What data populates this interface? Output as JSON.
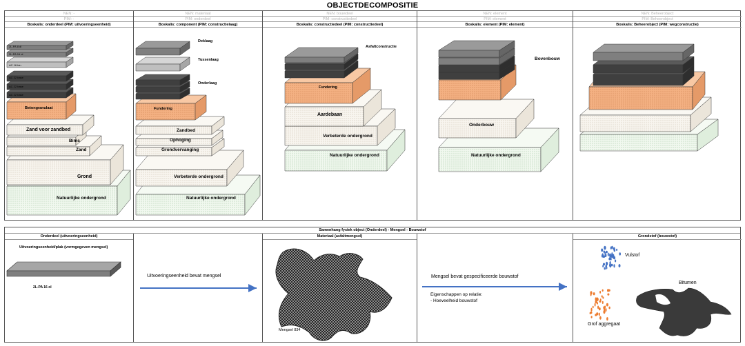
{
  "title": "OBJECTDECOMPOSITIE",
  "top": {
    "columns": [
      {
        "nen": "NEN: -",
        "pim_gray": "PIM: -",
        "boskalis": "Boskalis: onderdeel (PIM: uitvoeringseenheid)"
      },
      {
        "nen": "NEN: materiaal",
        "pim_gray": "PIM: onderdeel",
        "boskalis": "Boskalis: component (PIM: constructielaag)"
      },
      {
        "nen": "NEN: bouwdeel",
        "pim_gray": "PIM: constructiedeel",
        "boskalis": "Boskalis: constructiedeel (PIM: constructiedeel)"
      },
      {
        "nen": "NEN: element",
        "pim_gray": "PIM: element",
        "boskalis": "Boskalis: element (PIM: element)"
      },
      {
        "nen": "NEN: Beheerobject",
        "pim_gray": "PIM: Beheerobject",
        "boskalis": "Boskalis: Beheerobject (PIM: wegconstructie)"
      }
    ],
    "col1": {
      "asphalt_labels": [
        "2L-PA 8 dl",
        "2L-PA 16 ol",
        "AC 16 bin",
        "AC 22 base",
        "AC 22 base",
        "AC 22 base"
      ],
      "betongranulaat": "Betongranulaat",
      "zand_voor_zandbed": "Zand voor zandbed",
      "bims": "Bims",
      "zand": "Zand",
      "grond": "Grond",
      "natuurlijke_ondergrond": "Natuurlijke ondergrond"
    },
    "col2": {
      "deklaag": "Deklaag",
      "tussenlaag": "Tussenlaag",
      "onderlaag": "Onderlaag",
      "fundering": "Fundering",
      "zandbed": "Zandbed",
      "ophoging": "Ophoging",
      "grondverbetering": "Grondvervanging",
      "verbeterde_ondergrond": "Verbeterde ondergrond",
      "natuurlijke_ondergrond": "Natuurlijke ondergrond"
    },
    "col3": {
      "asfaltconstructie": "Asfaltconstructie",
      "fundering": "Fundering",
      "aardebaan": "Aardebaan",
      "verbeterde_ondergrond": "Verbeterde ondergrond",
      "natuurlijke_ondergrond": "Natuurlijke ondergrond"
    },
    "col4": {
      "bovenbouw": "Bovenbouw",
      "onderbouw": "Onderbouw",
      "natuurlijke_ondergrond": "Natuurlijke ondergrond"
    }
  },
  "bottom": {
    "title": "Samenhang fysiek object (Onderdeel) - Mengsel - Bouwstof",
    "col1": {
      "header": "Onderdeel (uitvoeringseenheid)",
      "subtitle": "Uitvoeringseenheid/plak (vormgegeven mengsel)",
      "plate_label": "2L-PA 16 ol"
    },
    "arrow1": "Uitvoeringseenheid bevat mengsel",
    "col3": {
      "header": "Materiaal (asfaltmengsel)",
      "mix_label": "Mengsel 834"
    },
    "arrow2": "Mengsel bevat gespecificeerde bouwstof",
    "props_title": "Eigenschappen op relatie:",
    "props_item": "- Hoeveelheid bouwstof",
    "col5": {
      "header": "Grondstof (bouwstof)",
      "vulstof": "Vulstof",
      "bitumen": "Bitumen",
      "grof_aggregaat": "Grof aggregaat"
    }
  },
  "colors": {
    "fundering": "#f4b183",
    "aardebaan": "#f6f3ee",
    "ondergrond": "#eef7ee",
    "asphalt_dark": "#404040",
    "asphalt_mid": "#7f7f7f",
    "asphalt_light": "#bfbfbf",
    "arrow": "#4472c4",
    "vulstof": "#4472c4",
    "aggregaat": "#ed7d31"
  }
}
